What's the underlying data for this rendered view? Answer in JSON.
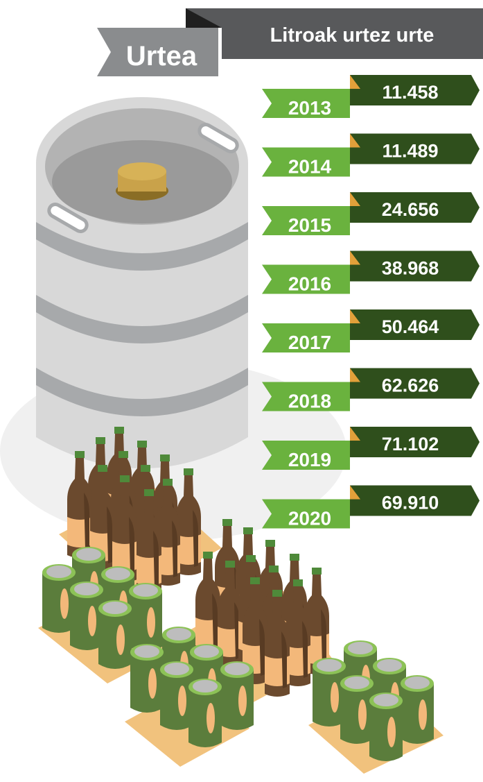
{
  "header": {
    "title": "Litroak urtez urte",
    "year_label": "Urtea"
  },
  "rows": [
    {
      "year": "2013",
      "liters": "11.458"
    },
    {
      "year": "2014",
      "liters": "11.489"
    },
    {
      "year": "2015",
      "liters": "24.656"
    },
    {
      "year": "2016",
      "liters": "38.968"
    },
    {
      "year": "2017",
      "liters": "50.464"
    },
    {
      "year": "2018",
      "liters": "62.626"
    },
    {
      "year": "2019",
      "liters": "71.102"
    },
    {
      "year": "2020",
      "liters": "69.910"
    }
  ]
}
